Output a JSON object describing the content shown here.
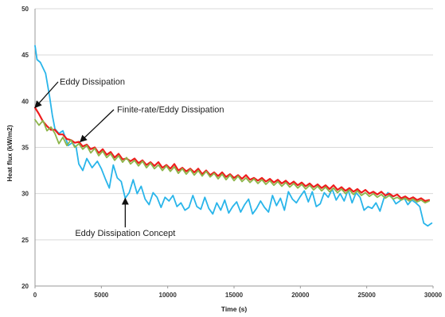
{
  "chart_data": {
    "type": "line",
    "xlabel": "Time (s)",
    "ylabel": "Heat flux (kW/m2)",
    "xlim": [
      0,
      30000
    ],
    "ylim": [
      20,
      50
    ],
    "x_ticks": [
      0,
      5000,
      10000,
      15000,
      20000,
      25000,
      30000
    ],
    "y_ticks": [
      20,
      25,
      30,
      35,
      40,
      45,
      50
    ],
    "grid": "horizontal",
    "legend": "none",
    "series": [
      {
        "name": "Eddy Dissipation Concept",
        "color": "#29b5ea",
        "points": [
          [
            0,
            46.0
          ],
          [
            150,
            44.5
          ],
          [
            400,
            44.2
          ],
          [
            800,
            43.0
          ],
          [
            1100,
            40.5
          ],
          [
            1300,
            38.5
          ],
          [
            1500,
            37.0
          ],
          [
            1800,
            36.5
          ],
          [
            2100,
            36.8
          ],
          [
            2500,
            35.2
          ],
          [
            2800,
            35.5
          ],
          [
            3100,
            35.0
          ],
          [
            3300,
            33.2
          ],
          [
            3600,
            32.5
          ],
          [
            3900,
            33.8
          ],
          [
            4300,
            32.8
          ],
          [
            4700,
            33.5
          ],
          [
            5000,
            32.7
          ],
          [
            5300,
            31.6
          ],
          [
            5600,
            30.6
          ],
          [
            5900,
            33.1
          ],
          [
            6200,
            31.7
          ],
          [
            6500,
            31.3
          ],
          [
            6800,
            29.5
          ],
          [
            7100,
            30.1
          ],
          [
            7400,
            31.5
          ],
          [
            7700,
            30.0
          ],
          [
            8000,
            30.8
          ],
          [
            8300,
            29.4
          ],
          [
            8600,
            28.8
          ],
          [
            8900,
            30.1
          ],
          [
            9200,
            29.6
          ],
          [
            9500,
            28.5
          ],
          [
            9800,
            29.6
          ],
          [
            10100,
            29.2
          ],
          [
            10400,
            29.8
          ],
          [
            10700,
            28.6
          ],
          [
            11000,
            29.0
          ],
          [
            11300,
            28.2
          ],
          [
            11600,
            28.5
          ],
          [
            11900,
            29.8
          ],
          [
            12200,
            28.6
          ],
          [
            12500,
            28.3
          ],
          [
            12800,
            29.6
          ],
          [
            13100,
            28.4
          ],
          [
            13400,
            27.8
          ],
          [
            13700,
            29.0
          ],
          [
            14000,
            28.2
          ],
          [
            14300,
            29.3
          ],
          [
            14600,
            27.9
          ],
          [
            14900,
            28.6
          ],
          [
            15200,
            29.1
          ],
          [
            15500,
            28.0
          ],
          [
            15800,
            28.8
          ],
          [
            16100,
            29.4
          ],
          [
            16400,
            27.8
          ],
          [
            16700,
            28.4
          ],
          [
            17000,
            29.2
          ],
          [
            17300,
            28.5
          ],
          [
            17600,
            28.0
          ],
          [
            17900,
            29.8
          ],
          [
            18200,
            28.7
          ],
          [
            18500,
            29.5
          ],
          [
            18800,
            28.2
          ],
          [
            19100,
            30.2
          ],
          [
            19400,
            29.4
          ],
          [
            19700,
            29.0
          ],
          [
            20000,
            29.7
          ],
          [
            20300,
            30.3
          ],
          [
            20600,
            29.1
          ],
          [
            20900,
            30.2
          ],
          [
            21200,
            28.6
          ],
          [
            21500,
            28.9
          ],
          [
            21800,
            30.1
          ],
          [
            22100,
            29.6
          ],
          [
            22400,
            30.5
          ],
          [
            22700,
            29.3
          ],
          [
            23000,
            30.0
          ],
          [
            23300,
            29.2
          ],
          [
            23600,
            30.4
          ],
          [
            23900,
            29.0
          ],
          [
            24200,
            30.1
          ],
          [
            24500,
            29.6
          ],
          [
            24800,
            28.2
          ],
          [
            25100,
            28.6
          ],
          [
            25400,
            28.4
          ],
          [
            25700,
            29.0
          ],
          [
            26000,
            28.1
          ],
          [
            26300,
            29.5
          ],
          [
            26600,
            30.1
          ],
          [
            26900,
            29.6
          ],
          [
            27200,
            28.9
          ],
          [
            27500,
            29.2
          ],
          [
            27800,
            29.6
          ],
          [
            28100,
            28.8
          ],
          [
            28400,
            29.3
          ],
          [
            28700,
            29.0
          ],
          [
            29000,
            28.6
          ],
          [
            29300,
            26.8
          ],
          [
            29600,
            26.5
          ],
          [
            29900,
            26.8
          ]
        ]
      },
      {
        "name": "Eddy Dissipation",
        "color": "#ee1c1c",
        "points": [
          [
            0,
            39.3
          ],
          [
            300,
            38.6
          ],
          [
            600,
            37.8
          ],
          [
            900,
            37.3
          ],
          [
            1200,
            36.9
          ],
          [
            1500,
            36.9
          ],
          [
            1800,
            36.4
          ],
          [
            2100,
            36.4
          ],
          [
            2400,
            35.9
          ],
          [
            2700,
            35.8
          ],
          [
            3000,
            35.5
          ],
          [
            3300,
            35.6
          ],
          [
            3600,
            35.1
          ],
          [
            3900,
            35.3
          ],
          [
            4200,
            34.8
          ],
          [
            4500,
            35.0
          ],
          [
            4800,
            34.4
          ],
          [
            5100,
            34.8
          ],
          [
            5400,
            34.2
          ],
          [
            5700,
            34.5
          ],
          [
            6000,
            33.9
          ],
          [
            6300,
            34.3
          ],
          [
            6600,
            33.7
          ],
          [
            6900,
            33.8
          ],
          [
            7200,
            33.5
          ],
          [
            7500,
            33.8
          ],
          [
            7800,
            33.3
          ],
          [
            8100,
            33.6
          ],
          [
            8400,
            33.1
          ],
          [
            8700,
            33.4
          ],
          [
            9000,
            33.0
          ],
          [
            9300,
            33.4
          ],
          [
            9600,
            32.8
          ],
          [
            9900,
            33.1
          ],
          [
            10200,
            32.7
          ],
          [
            10500,
            33.2
          ],
          [
            10800,
            32.5
          ],
          [
            11100,
            32.8
          ],
          [
            11400,
            32.4
          ],
          [
            11700,
            32.7
          ],
          [
            12000,
            32.3
          ],
          [
            12300,
            32.7
          ],
          [
            12600,
            32.1
          ],
          [
            12900,
            32.5
          ],
          [
            13200,
            32.0
          ],
          [
            13500,
            32.3
          ],
          [
            13800,
            31.9
          ],
          [
            14100,
            32.3
          ],
          [
            14400,
            31.8
          ],
          [
            14700,
            32.1
          ],
          [
            15000,
            31.7
          ],
          [
            15300,
            32.0
          ],
          [
            15600,
            31.6
          ],
          [
            15900,
            32.0
          ],
          [
            16200,
            31.5
          ],
          [
            16500,
            31.7
          ],
          [
            16800,
            31.4
          ],
          [
            17100,
            31.7
          ],
          [
            17400,
            31.3
          ],
          [
            17700,
            31.6
          ],
          [
            18000,
            31.2
          ],
          [
            18300,
            31.5
          ],
          [
            18600,
            31.1
          ],
          [
            18900,
            31.4
          ],
          [
            19200,
            31.0
          ],
          [
            19500,
            31.3
          ],
          [
            19800,
            30.9
          ],
          [
            20100,
            31.2
          ],
          [
            20400,
            30.8
          ],
          [
            20700,
            31.1
          ],
          [
            21000,
            30.7
          ],
          [
            21300,
            31.0
          ],
          [
            21600,
            30.6
          ],
          [
            21900,
            30.9
          ],
          [
            22200,
            30.5
          ],
          [
            22500,
            30.9
          ],
          [
            22800,
            30.4
          ],
          [
            23100,
            30.7
          ],
          [
            23400,
            30.3
          ],
          [
            23700,
            30.6
          ],
          [
            24000,
            30.2
          ],
          [
            24300,
            30.5
          ],
          [
            24600,
            30.1
          ],
          [
            24900,
            30.4
          ],
          [
            25200,
            30.0
          ],
          [
            25500,
            30.2
          ],
          [
            25800,
            29.9
          ],
          [
            26100,
            30.2
          ],
          [
            26400,
            29.8
          ],
          [
            26700,
            30.0
          ],
          [
            27000,
            29.7
          ],
          [
            27300,
            29.9
          ],
          [
            27600,
            29.5
          ],
          [
            27900,
            29.7
          ],
          [
            28200,
            29.4
          ],
          [
            28500,
            29.6
          ],
          [
            28800,
            29.3
          ],
          [
            29100,
            29.5
          ],
          [
            29400,
            29.2
          ],
          [
            29700,
            29.3
          ]
        ]
      },
      {
        "name": "Finite-rate/Eddy Dissipation",
        "color": "#8db54a",
        "points": [
          [
            0,
            38.0
          ],
          [
            300,
            37.4
          ],
          [
            600,
            37.9
          ],
          [
            900,
            36.8
          ],
          [
            1200,
            37.2
          ],
          [
            1500,
            36.5
          ],
          [
            1800,
            35.4
          ],
          [
            2100,
            36.1
          ],
          [
            2400,
            35.2
          ],
          [
            2700,
            35.8
          ],
          [
            3000,
            35.0
          ],
          [
            3300,
            35.4
          ],
          [
            3600,
            34.8
          ],
          [
            3900,
            35.2
          ],
          [
            4200,
            34.4
          ],
          [
            4500,
            34.9
          ],
          [
            4800,
            34.1
          ],
          [
            5100,
            34.6
          ],
          [
            5400,
            33.9
          ],
          [
            5700,
            34.3
          ],
          [
            6000,
            33.6
          ],
          [
            6300,
            34.1
          ],
          [
            6600,
            33.4
          ],
          [
            6900,
            33.9
          ],
          [
            7200,
            33.2
          ],
          [
            7500,
            33.6
          ],
          [
            7800,
            33.0
          ],
          [
            8100,
            33.5
          ],
          [
            8400,
            32.8
          ],
          [
            8700,
            33.3
          ],
          [
            9000,
            32.7
          ],
          [
            9300,
            33.1
          ],
          [
            9600,
            32.5
          ],
          [
            9900,
            33.0
          ],
          [
            10200,
            32.4
          ],
          [
            10500,
            32.9
          ],
          [
            10800,
            32.2
          ],
          [
            11100,
            32.7
          ],
          [
            11400,
            32.1
          ],
          [
            11700,
            32.6
          ],
          [
            12000,
            32.0
          ],
          [
            12300,
            32.5
          ],
          [
            12600,
            31.9
          ],
          [
            12900,
            32.4
          ],
          [
            13200,
            31.8
          ],
          [
            13500,
            32.2
          ],
          [
            13800,
            31.6
          ],
          [
            14100,
            32.1
          ],
          [
            14400,
            31.5
          ],
          [
            14700,
            32.0
          ],
          [
            15000,
            31.4
          ],
          [
            15300,
            31.9
          ],
          [
            15600,
            31.3
          ],
          [
            15900,
            31.7
          ],
          [
            16200,
            31.2
          ],
          [
            16500,
            31.6
          ],
          [
            16800,
            31.1
          ],
          [
            17100,
            31.5
          ],
          [
            17400,
            31.0
          ],
          [
            17700,
            31.4
          ],
          [
            18000,
            30.9
          ],
          [
            18300,
            31.3
          ],
          [
            18600,
            30.8
          ],
          [
            18900,
            31.2
          ],
          [
            19200,
            30.7
          ],
          [
            19500,
            31.1
          ],
          [
            19800,
            30.6
          ],
          [
            20100,
            31.0
          ],
          [
            20400,
            30.5
          ],
          [
            20700,
            30.9
          ],
          [
            21000,
            30.4
          ],
          [
            21300,
            30.8
          ],
          [
            21600,
            30.3
          ],
          [
            21900,
            30.7
          ],
          [
            22200,
            30.2
          ],
          [
            22500,
            30.6
          ],
          [
            22800,
            30.1
          ],
          [
            23100,
            30.5
          ],
          [
            23400,
            30.0
          ],
          [
            23700,
            30.4
          ],
          [
            24000,
            29.9
          ],
          [
            24300,
            30.3
          ],
          [
            24600,
            29.8
          ],
          [
            24900,
            30.1
          ],
          [
            25200,
            29.7
          ],
          [
            25500,
            30.0
          ],
          [
            25800,
            29.6
          ],
          [
            26100,
            29.9
          ],
          [
            26400,
            29.5
          ],
          [
            26700,
            29.8
          ],
          [
            27000,
            29.4
          ],
          [
            27300,
            29.6
          ],
          [
            27600,
            29.3
          ],
          [
            27900,
            29.5
          ],
          [
            28200,
            29.2
          ],
          [
            28500,
            29.4
          ],
          [
            28800,
            29.1
          ],
          [
            29100,
            29.3
          ],
          [
            29400,
            29.0
          ],
          [
            29700,
            29.2
          ]
        ]
      }
    ],
    "annotations": [
      {
        "text": "Eddy Dissipation",
        "arrow_to": [
          0,
          39.3
        ],
        "text_at": [
          1800,
          41.8
        ]
      },
      {
        "text": "Finite-rate/Eddy Dissipation",
        "arrow_to": [
          3400,
          35.6
        ],
        "text_at": [
          7400,
          38.8
        ]
      },
      {
        "text": "Eddy Dissipation Concept",
        "arrow_to": [
          6800,
          29.5
        ],
        "text_at": [
          6800,
          25.4
        ]
      }
    ]
  }
}
